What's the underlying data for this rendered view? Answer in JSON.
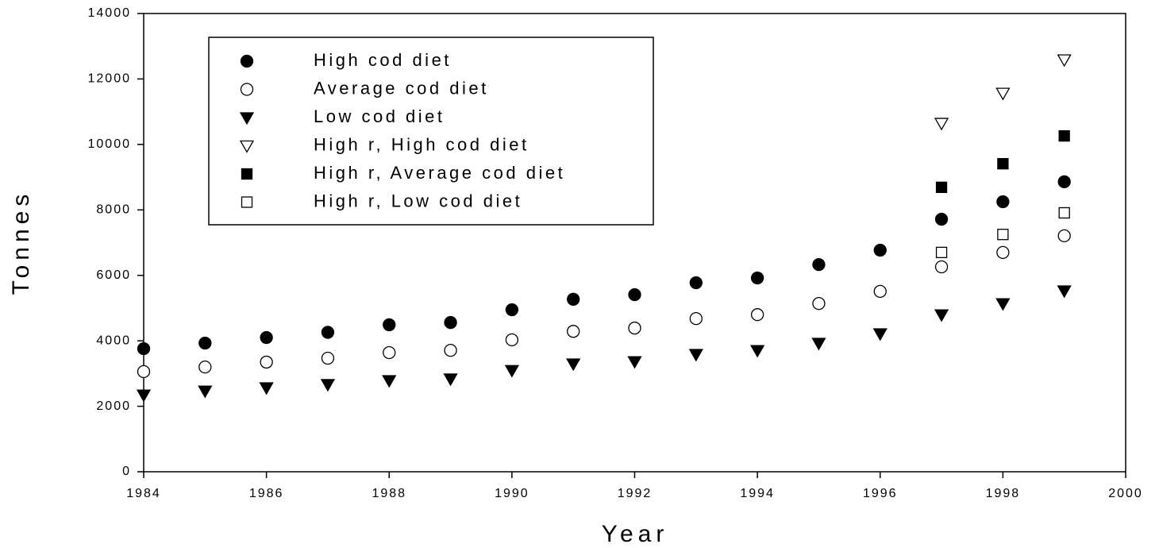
{
  "chart_data": {
    "type": "scatter",
    "xlabel": "Year",
    "ylabel": "Tonnes",
    "xlim": [
      1984,
      2000
    ],
    "xticks": [
      1984,
      1986,
      1988,
      1990,
      1992,
      1994,
      1996,
      1998,
      2000
    ],
    "ylim": [
      0,
      14000
    ],
    "yticks": [
      0,
      2000,
      4000,
      6000,
      8000,
      10000,
      12000,
      14000
    ],
    "legend": "upper left",
    "series": [
      {
        "name": "High cod diet",
        "color": "#000000",
        "marker": "circle",
        "filled": true,
        "x": [
          1984,
          1985,
          1986,
          1987,
          1988,
          1989,
          1990,
          1991,
          1992,
          1993,
          1994,
          1995,
          1996,
          1997,
          1998,
          1999
        ],
        "values": [
          3760,
          3930,
          4100,
          4260,
          4490,
          4560,
          4950,
          5270,
          5410,
          5775,
          5920,
          6330,
          6770,
          7715,
          8250,
          8860
        ]
      },
      {
        "name": "Average cod diet",
        "color": "#000000",
        "marker": "circle",
        "filled": false,
        "x": [
          1984,
          1985,
          1986,
          1987,
          1988,
          1989,
          1990,
          1991,
          1992,
          1993,
          1994,
          1995,
          1996,
          1997,
          1998,
          1999
        ],
        "values": [
          3060,
          3200,
          3350,
          3470,
          3640,
          3710,
          4030,
          4290,
          4390,
          4680,
          4800,
          5140,
          5510,
          6260,
          6700,
          7210
        ]
      },
      {
        "name": "Low cod diet",
        "color": "#000000",
        "marker": "triangle-down",
        "filled": true,
        "x": [
          1984,
          1985,
          1986,
          1987,
          1988,
          1989,
          1990,
          1991,
          1992,
          1993,
          1994,
          1995,
          1996,
          1997,
          1998,
          1999
        ],
        "values": [
          2350,
          2470,
          2570,
          2670,
          2790,
          2840,
          3100,
          3300,
          3370,
          3590,
          3710,
          3930,
          4220,
          4800,
          5140,
          5530
        ]
      },
      {
        "name": "High r, High cod diet",
        "color": "#000000",
        "marker": "triangle-down",
        "filled": false,
        "x": [
          1997,
          1998,
          1999
        ],
        "values": [
          10650,
          11570,
          12590
        ]
      },
      {
        "name": "High r, Average cod diet",
        "color": "#000000",
        "marker": "square",
        "filled": true,
        "x": [
          1997,
          1998,
          1999
        ],
        "values": [
          8690,
          9410,
          10260
        ]
      },
      {
        "name": "High r, Low cod diet",
        "color": "#000000",
        "marker": "square",
        "filled": false,
        "x": [
          1997,
          1998,
          1999
        ],
        "values": [
          6700,
          7250,
          7910
        ]
      }
    ]
  }
}
